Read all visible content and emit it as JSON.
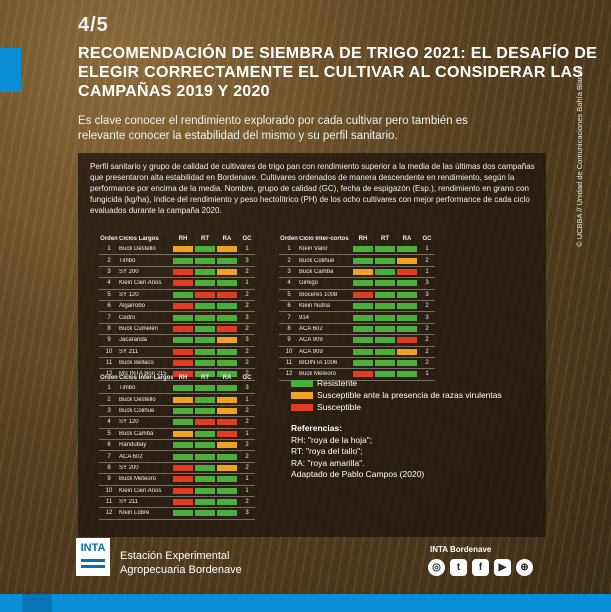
{
  "colors": {
    "accent": "#0a8fd6",
    "resistente": "#4cae3c",
    "susceptible_razas": "#f0a323",
    "susceptible": "#e23b24"
  },
  "header": {
    "slide": "4/5",
    "title": "RECOMENDACIÓN DE SIEMBRA DE TRIGO 2021: EL DESAFÍO DE ELEGIR CORRECTAMENTE EL CULTIVAR AL CONSIDERAR LAS CAMPAÑAS 2019 Y 2020",
    "subtitle": "Es clave conocer el rendimiento explorado por cada cultivar pero también es relevante conocer la estabilidad del mismo y su perfil sanitario."
  },
  "panel": {
    "intro": "Perfil sanitario y grupo de calidad de cultivares de trigo pan con rendimiento superior a la media de las últimas dos campañas que presentaron alta estabilidad en Bordenave. Cultivares ordenados de manera descendente en rendimiento, según la performance por encima de la media. Nombre, grupo de calidad (GC), fecha de espigazón (Esp.), rendimiento en grano con fungicida (kg/ha), índice del rendimiento y peso hectolítrico (PH) de los ocho cultivares con mejor performance de cada ciclo evaluados durante la campaña 2020."
  },
  "tables": [
    {
      "headers": [
        "Orden",
        "Ciclos Largos",
        "RH",
        "RT",
        "RA",
        "GC"
      ],
      "rows": [
        {
          "orden": "1",
          "nombre": "Buck Destello",
          "status": [
            "o",
            "g",
            "o"
          ],
          "gc": "1"
        },
        {
          "orden": "2",
          "nombre": "Timbó",
          "status": [
            "g",
            "g",
            "g"
          ],
          "gc": "3"
        },
        {
          "orden": "3",
          "nombre": "SY 200",
          "status": [
            "r",
            "g",
            "o"
          ],
          "gc": "2"
        },
        {
          "orden": "4",
          "nombre": "Klein Cien Años",
          "status": [
            "r",
            "g",
            "g"
          ],
          "gc": "1"
        },
        {
          "orden": "5",
          "nombre": "SY 120",
          "status": [
            "g",
            "r",
            "r"
          ],
          "gc": "2"
        },
        {
          "orden": "6",
          "nombre": "Algarrobo",
          "status": [
            "r",
            "g",
            "g"
          ],
          "gc": "2"
        },
        {
          "orden": "7",
          "nombre": "Cedro",
          "status": [
            "g",
            "g",
            "g"
          ],
          "gc": "3"
        },
        {
          "orden": "8",
          "nombre": "Buck Cumelén",
          "status": [
            "r",
            "g",
            "r"
          ],
          "gc": "2"
        },
        {
          "orden": "9",
          "nombre": "Jacarandá",
          "status": [
            "g",
            "g",
            "o"
          ],
          "gc": "3"
        },
        {
          "orden": "10",
          "nombre": "SY 211",
          "status": [
            "r",
            "g",
            "g"
          ],
          "gc": "2"
        },
        {
          "orden": "11",
          "nombre": "Buck Bellaco",
          "status": [
            "r",
            "g",
            "g"
          ],
          "gc": "2"
        },
        {
          "orden": "12",
          "nombre": "MS INTA Bon 215",
          "status": [
            "r",
            "g",
            "g"
          ],
          "gc": "2"
        }
      ]
    },
    {
      "headers": [
        "Orden",
        "Ciclo Inter-cortos",
        "RH",
        "RT",
        "RA",
        "GC"
      ],
      "rows": [
        {
          "orden": "1",
          "nombre": "Klein Valor",
          "status": [
            "g",
            "g",
            "g"
          ],
          "gc": "1"
        },
        {
          "orden": "2",
          "nombre": "Buck Colihue",
          "status": [
            "g",
            "g",
            "o"
          ],
          "gc": "2"
        },
        {
          "orden": "3",
          "nombre": "Buck Camba",
          "status": [
            "o",
            "g",
            "r"
          ],
          "gc": "1"
        },
        {
          "orden": "4",
          "nombre": "Ginkgo",
          "status": [
            "g",
            "g",
            "g"
          ],
          "gc": "3"
        },
        {
          "orden": "5",
          "nombre": "Bioceres 1008",
          "status": [
            "r",
            "g",
            "g"
          ],
          "gc": "3"
        },
        {
          "orden": "6",
          "nombre": "Klein Nutria",
          "status": [
            "g",
            "g",
            "g"
          ],
          "gc": "2"
        },
        {
          "orden": "7",
          "nombre": "914",
          "status": [
            "g",
            "g",
            "g"
          ],
          "gc": "3"
        },
        {
          "orden": "8",
          "nombre": "ACA 602",
          "status": [
            "g",
            "g",
            "g"
          ],
          "gc": "2"
        },
        {
          "orden": "9",
          "nombre": "ACA 909",
          "status": [
            "g",
            "g",
            "r"
          ],
          "gc": "2"
        },
        {
          "orden": "10",
          "nombre": "ACA 909",
          "status": [
            "g",
            "g",
            "o"
          ],
          "gc": "2"
        },
        {
          "orden": "11",
          "nombre": "BIOINTA 1006",
          "status": [
            "g",
            "g",
            "g"
          ],
          "gc": "2"
        },
        {
          "orden": "12",
          "nombre": "Buck Meteoro",
          "status": [
            "r",
            "g",
            "g"
          ],
          "gc": "1"
        }
      ]
    },
    {
      "headers": [
        "Orden",
        "Ciclos Inter-Largos",
        "RH",
        "RT",
        "RA",
        "GC"
      ],
      "rows": [
        {
          "orden": "1",
          "nombre": "Timbó",
          "status": [
            "g",
            "g",
            "g"
          ],
          "gc": "3"
        },
        {
          "orden": "2",
          "nombre": "Buck Destello",
          "status": [
            "o",
            "g",
            "o"
          ],
          "gc": "1"
        },
        {
          "orden": "3",
          "nombre": "Buck Colihue",
          "status": [
            "g",
            "g",
            "o"
          ],
          "gc": "2"
        },
        {
          "orden": "4",
          "nombre": "SY 120",
          "status": [
            "g",
            "r",
            "r"
          ],
          "gc": "2"
        },
        {
          "orden": "5",
          "nombre": "Buck Cambá",
          "status": [
            "o",
            "g",
            "r"
          ],
          "gc": "1"
        },
        {
          "orden": "6",
          "nombre": "Randubay",
          "status": [
            "g",
            "g",
            "o"
          ],
          "gc": "2"
        },
        {
          "orden": "7",
          "nombre": "ACA 602",
          "status": [
            "g",
            "g",
            "g"
          ],
          "gc": "2"
        },
        {
          "orden": "8",
          "nombre": "SY 200",
          "status": [
            "r",
            "g",
            "o"
          ],
          "gc": "2"
        },
        {
          "orden": "9",
          "nombre": "Buck Meteoro",
          "status": [
            "r",
            "g",
            "g"
          ],
          "gc": "1"
        },
        {
          "orden": "10",
          "nombre": "Klein Cien Años",
          "status": [
            "r",
            "g",
            "g"
          ],
          "gc": "1"
        },
        {
          "orden": "11",
          "nombre": "SY 211",
          "status": [
            "r",
            "g",
            "g"
          ],
          "gc": "2"
        },
        {
          "orden": "12",
          "nombre": "Klein Lobre",
          "status": [
            "g",
            "g",
            "g"
          ],
          "gc": "3"
        }
      ]
    }
  ],
  "legend": [
    {
      "label": "Resistente",
      "code": "g"
    },
    {
      "label": "Susceptible ante la presencia de razas virulentas",
      "code": "o"
    },
    {
      "label": "Susceptible",
      "code": "r"
    }
  ],
  "references": {
    "title": "Referencias:",
    "lines": [
      "RH: \"roya de la hoja\";",
      "RT: \"roya del tallo\";",
      "RA: \"roya amarilla\".",
      "Adaptado de Pablo Campos (2020)"
    ]
  },
  "credit": "© UCBBA // Unidad de Comunicaciones Bahía Blanca",
  "footer": {
    "logo_text": "INTA",
    "station_line1": "Estación Experimental",
    "station_line2": "Agropecuaria Bordenave",
    "social_title": "INTA Bordenave",
    "social_icons": [
      "instagram-icon",
      "twitter-icon",
      "facebook-icon",
      "youtube-icon",
      "web-icon"
    ]
  }
}
